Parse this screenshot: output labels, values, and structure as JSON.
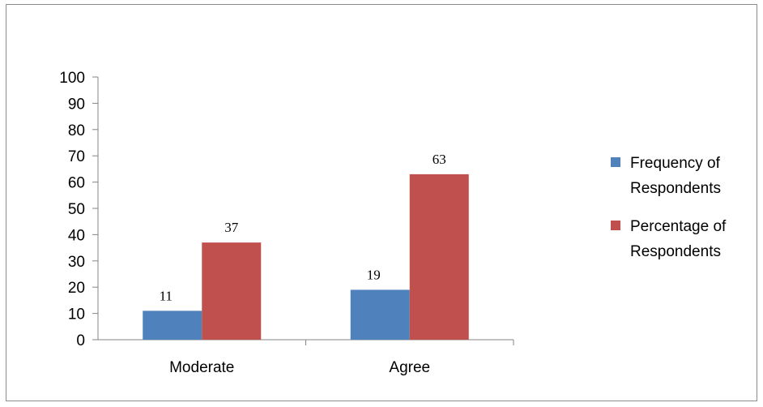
{
  "chart_data": {
    "type": "bar",
    "categories": [
      "Moderate",
      "Agree"
    ],
    "series": [
      {
        "name": "Frequency of Respondents",
        "values": [
          11,
          19
        ],
        "color": "#4f81bd",
        "labels": [
          "11",
          "19"
        ]
      },
      {
        "name": "Percentage of Respondents",
        "values": [
          37,
          63
        ],
        "color": "#c0504d",
        "labels": [
          "37",
          "63"
        ]
      }
    ],
    "legend_lines": [
      [
        "Frequency of",
        "Respondents"
      ],
      [
        "Percentage of",
        "Respondents"
      ]
    ],
    "y_ticks": [
      "0",
      "10",
      "20",
      "30",
      "40",
      "50",
      "60",
      "70",
      "80",
      "90",
      "100"
    ],
    "ylim": [
      0,
      100
    ],
    "grid": false,
    "legend_position": "right",
    "title": "",
    "xlabel": "",
    "ylabel": ""
  }
}
